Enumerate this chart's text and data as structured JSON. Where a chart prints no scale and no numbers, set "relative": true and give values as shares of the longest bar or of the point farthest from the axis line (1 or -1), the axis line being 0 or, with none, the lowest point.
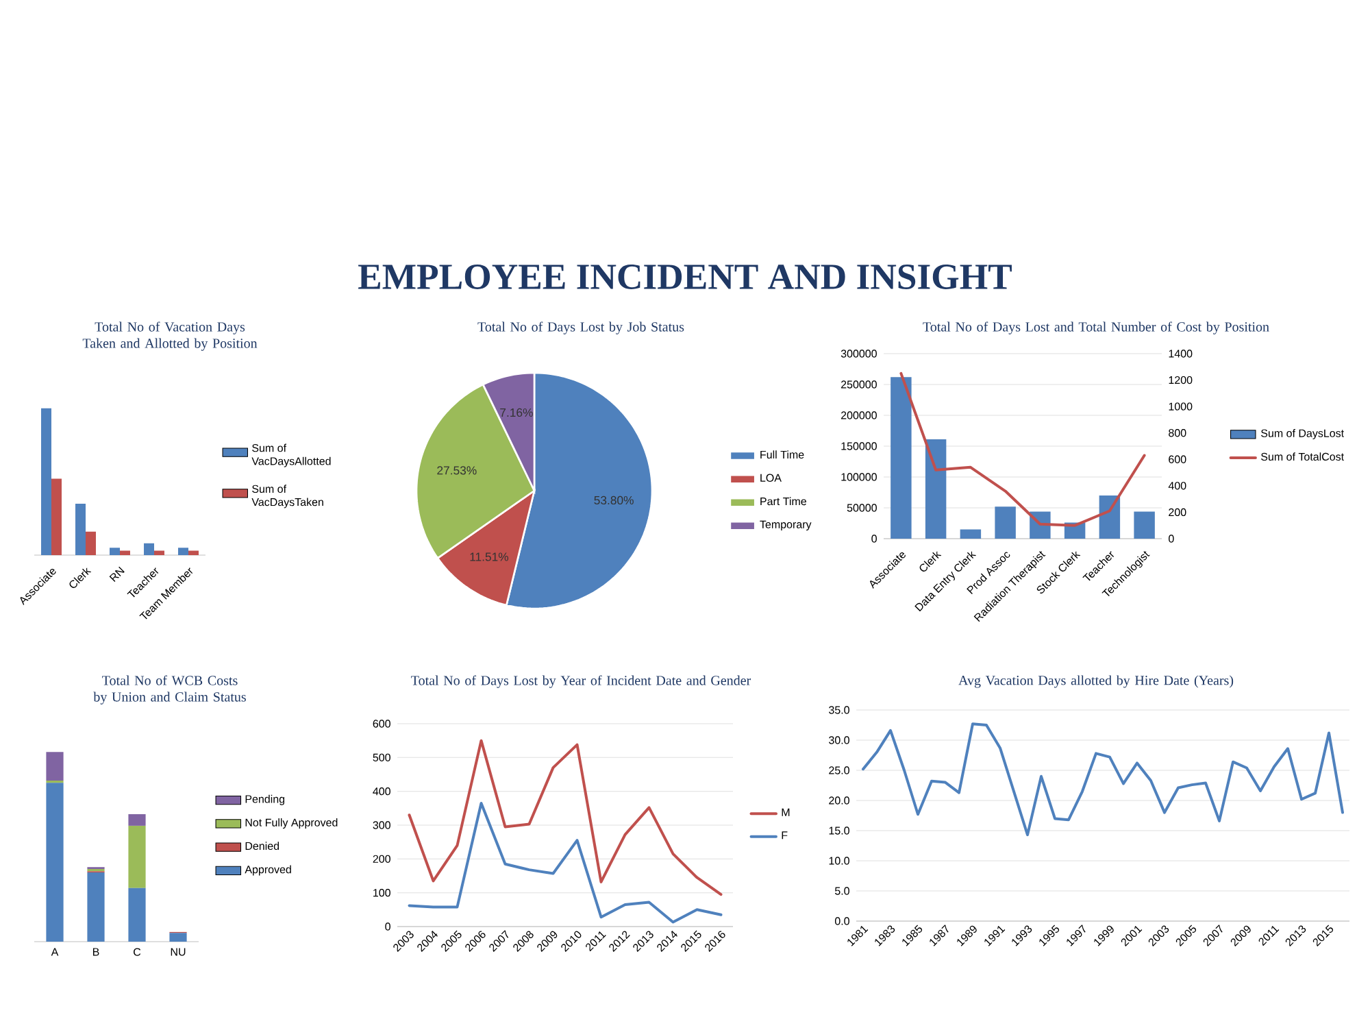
{
  "chart_data": [
    {
      "type": "other",
      "title": "EMPLOYEE INCIDENT AND INSIGHT"
    },
    {
      "type": "bar",
      "title": "Total No of Vacation Days Taken and Allotted by Position",
      "categories": [
        "Associate",
        "Clerk",
        "RN",
        "Teacher",
        "Team Member"
      ],
      "relative": true,
      "legend": "right",
      "tick_labels": "x",
      "series": [
        {
          "name": "Sum of VacDaysAllotted",
          "color": "#4f81bd",
          "values": [
            1,
            0.35,
            0.05,
            0.08,
            0.05
          ]
        },
        {
          "name": "Sum of VacDaysTaken",
          "color": "#c0504d",
          "values": [
            0.52,
            0.16,
            0.03,
            0.03,
            0.03
          ]
        }
      ]
    },
    {
      "type": "pie",
      "title": "Total No of Days Lost by Job Status",
      "categories": [
        "Full Time",
        "LOA",
        "Part Time",
        "Temporary"
      ],
      "values": [
        53.8,
        11.51,
        27.53,
        7.16
      ],
      "value_labels": [
        "53.80%",
        "11.51%",
        "27.53%",
        "7.16%"
      ],
      "colors": [
        "#4f81bd",
        "#c0504d",
        "#9bbb59",
        "#8064a2"
      ],
      "legend": "right"
    },
    {
      "type": "bar",
      "title": "Total No of Days Lost and Total Number of Cost by Position",
      "categories": [
        "Associate",
        "Clerk",
        "Data Entry Clerk",
        "Prod Assoc",
        "Radiation Therapist",
        "Stock Clerk",
        "Teacher",
        "Technologist"
      ],
      "ylim": [
        0,
        300000
      ],
      "yticks": [
        0,
        50000,
        100000,
        150000,
        200000,
        250000,
        300000
      ],
      "y2lim": [
        0,
        1400
      ],
      "y2ticks": [
        0,
        200,
        400,
        600,
        800,
        1000,
        1200,
        1400
      ],
      "grid": "y",
      "legend": "right",
      "series": [
        {
          "name": "Sum of DaysLost",
          "type": "bar",
          "color": "#4f81bd",
          "values": [
            262000,
            161000,
            15000,
            52000,
            44000,
            26000,
            70000,
            44000
          ]
        },
        {
          "name": "Sum of TotalCost",
          "type": "line",
          "axis": "y2",
          "color": "#c0504d",
          "values": [
            1250,
            520,
            540,
            360,
            110,
            100,
            210,
            630
          ]
        }
      ]
    },
    {
      "type": "bar",
      "title": "Total No of WCB Costs  by Union and Claim Status",
      "categories": [
        "A",
        "B",
        "C",
        "NU"
      ],
      "relative": true,
      "stacked": true,
      "legend": "right",
      "tick_labels": "x",
      "series": [
        {
          "name": "Approved",
          "color": "#4f81bd",
          "values": [
            0.837,
            0.365,
            0.283,
            0.046
          ]
        },
        {
          "name": "Denied",
          "color": "#c0504d",
          "values": [
            0,
            0.006,
            0,
            0.005
          ]
        },
        {
          "name": "Not Fully Approved",
          "color": "#9bbb59",
          "values": [
            0.012,
            0.012,
            0.328,
            0
          ]
        },
        {
          "name": "Pending",
          "color": "#8064a2",
          "values": [
            0.151,
            0.01,
            0.061,
            0
          ]
        }
      ]
    },
    {
      "type": "line",
      "title": "Total No of Days Lost by Year of Incident Date and Gender",
      "categories": [
        "2003",
        "2004",
        "2005",
        "2006",
        "2007",
        "2008",
        "2009",
        "2010",
        "2011",
        "2012",
        "2013",
        "2014",
        "2015",
        "2016"
      ],
      "ylim": [
        0,
        600
      ],
      "yticks": [
        0,
        100,
        200,
        300,
        400,
        500,
        600
      ],
      "grid": "y",
      "legend": "right",
      "series": [
        {
          "name": "M",
          "color": "#c0504d",
          "values": [
            330,
            135,
            240,
            550,
            295,
            303,
            470,
            538,
            132,
            272,
            352,
            215,
            145,
            95
          ]
        },
        {
          "name": "F",
          "color": "#4f81bd",
          "values": [
            62,
            58,
            58,
            365,
            185,
            168,
            157,
            255,
            28,
            65,
            72,
            13,
            50,
            35
          ]
        }
      ]
    },
    {
      "type": "line",
      "title": "Avg Vacation Days allotted by Hire Date (Years)",
      "categories": [
        "1981",
        null,
        "1983",
        null,
        "1985",
        null,
        "1987",
        null,
        "1989",
        null,
        "1991",
        null,
        "1993",
        null,
        "1995",
        null,
        "1997",
        null,
        "1999",
        null,
        "2001",
        null,
        "2003",
        null,
        "2005",
        null,
        "2007",
        null,
        "2009",
        null,
        "2011",
        null,
        "2013",
        null,
        "2015",
        null
      ],
      "ylim": [
        0,
        35
      ],
      "yticks": [
        {
          "value": 0,
          "label": "0.0"
        },
        {
          "value": 5,
          "label": "5.0"
        },
        {
          "value": 10,
          "label": "10.0"
        },
        {
          "value": 15,
          "label": "15.0"
        },
        {
          "value": 20,
          "label": "20.0"
        },
        {
          "value": 25,
          "label": "25.0"
        },
        {
          "value": 30,
          "label": "30.0"
        },
        {
          "value": 35,
          "label": "35.0"
        }
      ],
      "grid": "y",
      "series": [
        {
          "color": "#4f81bd",
          "values": [
            25.2,
            28.0,
            31.6,
            25.0,
            17.7,
            23.2,
            23.0,
            21.3,
            32.7,
            32.5,
            28.7,
            21.5,
            14.3,
            24.0,
            17.0,
            16.8,
            21.5,
            27.8,
            27.2,
            22.8,
            26.2,
            23.3,
            18.0,
            22.1,
            22.6,
            22.9,
            16.6,
            26.4,
            25.4,
            21.6,
            25.6,
            28.6,
            20.2,
            21.2,
            31.2,
            18.0
          ]
        }
      ]
    }
  ]
}
